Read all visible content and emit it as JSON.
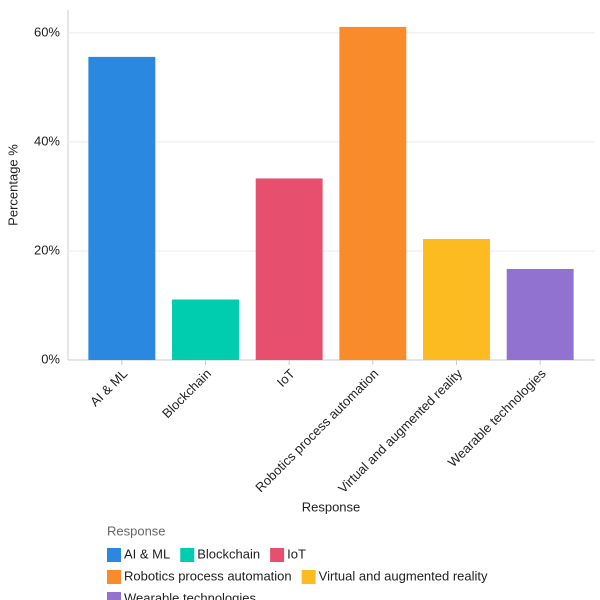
{
  "chart_data": {
    "type": "bar",
    "x_label": "Response",
    "y_label": "Percentage %",
    "legend_title": "Response",
    "categories": [
      "AI & ML",
      "Blockchain",
      "IoT",
      "Robotics process automation",
      "Virtual and augmented reality",
      "Wearable technologies"
    ],
    "values": [
      55.6,
      11.1,
      33.3,
      61.1,
      22.2,
      16.7
    ],
    "colors": [
      "#2a88e0",
      "#00cdb0",
      "#e64f6e",
      "#f98b2b",
      "#fdbb22",
      "#9272d0"
    ],
    "ylim": [
      0,
      64.2
    ],
    "yticks": [
      {
        "value": 0,
        "label": "0%"
      },
      {
        "value": 20,
        "label": "20%"
      },
      {
        "value": 40,
        "label": "40%"
      },
      {
        "value": 60,
        "label": "60%"
      }
    ],
    "grid": true
  }
}
